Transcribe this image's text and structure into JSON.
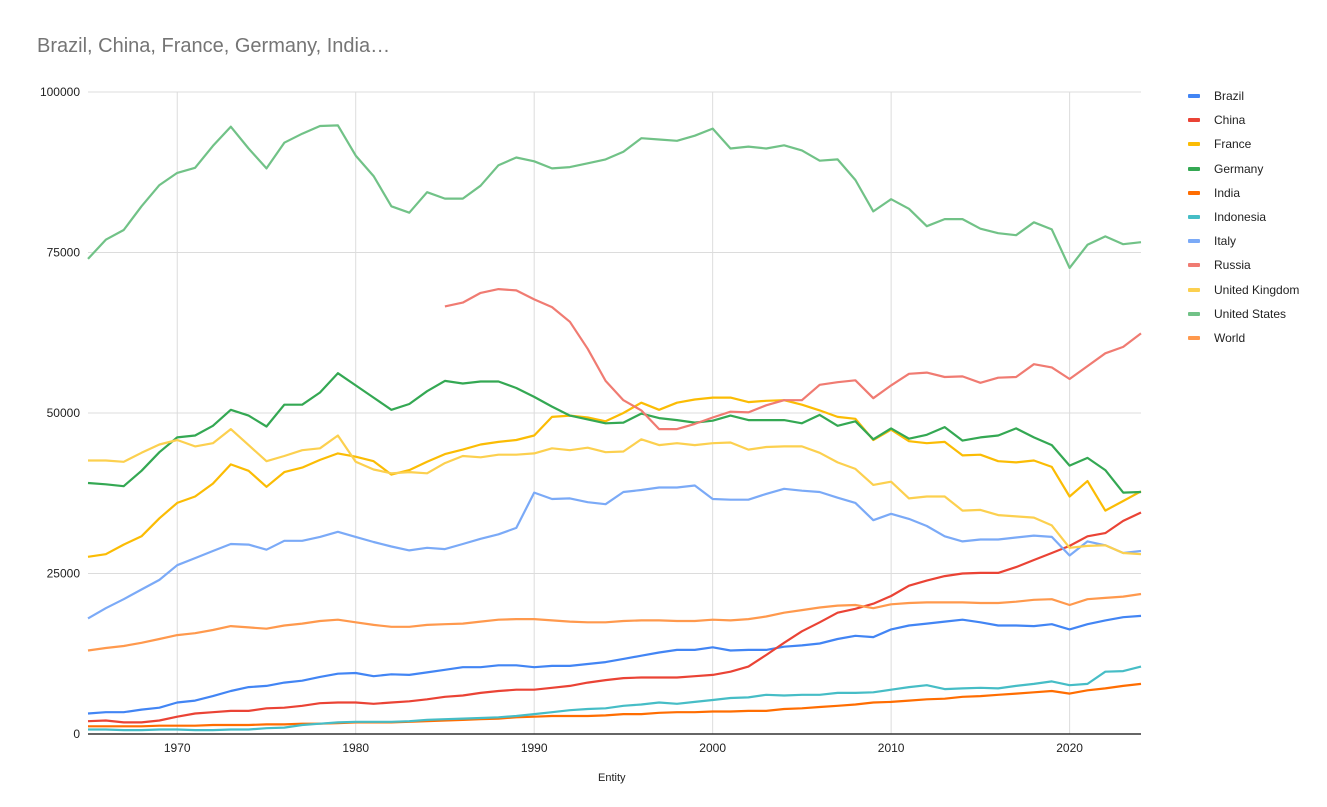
{
  "chart_data": {
    "type": "line",
    "title": "Brazil, China, France, Germany, India…",
    "xlabel": "Entity",
    "ylabel": "",
    "xlim": [
      1965,
      2024
    ],
    "ylim": [
      0,
      100000
    ],
    "x_ticks": [
      "1970",
      "1980",
      "1990",
      "2000",
      "2010",
      "2020"
    ],
    "x_tick_values": [
      1970,
      1980,
      1990,
      2000,
      2010,
      2020
    ],
    "y_ticks": [
      "0",
      "25000",
      "50000",
      "75000",
      "100000"
    ],
    "y_tick_values": [
      0,
      25000,
      50000,
      75000,
      100000
    ],
    "grid": true,
    "legend_position": "right",
    "x": [
      1965,
      1966,
      1967,
      1968,
      1969,
      1970,
      1971,
      1972,
      1973,
      1974,
      1975,
      1976,
      1977,
      1978,
      1979,
      1980,
      1981,
      1982,
      1983,
      1984,
      1985,
      1986,
      1987,
      1988,
      1989,
      1990,
      1991,
      1992,
      1993,
      1994,
      1995,
      1996,
      1997,
      1998,
      1999,
      2000,
      2001,
      2002,
      2003,
      2004,
      2005,
      2006,
      2007,
      2008,
      2009,
      2010,
      2011,
      2012,
      2013,
      2014,
      2015,
      2016,
      2017,
      2018,
      2019,
      2020,
      2021,
      2022,
      2023,
      2024
    ],
    "series": [
      {
        "name": "Brazil",
        "color": "#4285f4",
        "values": [
          3200,
          3400,
          3400,
          3800,
          4100,
          4900,
          5200,
          5900,
          6700,
          7300,
          7500,
          8000,
          8300,
          8900,
          9400,
          9500,
          9000,
          9300,
          9200,
          9600,
          10000,
          10400,
          10400,
          10700,
          10700,
          10400,
          10600,
          10600,
          10900,
          11200,
          11700,
          12200,
          12700,
          13100,
          13100,
          13500,
          13000,
          13100,
          13100,
          13600,
          13800,
          14100,
          14800,
          15300,
          15100,
          16300,
          16900,
          17200,
          17500,
          17800,
          17400,
          16900,
          16900,
          16800,
          17100,
          16300,
          17100,
          17700,
          18200,
          18400
        ]
      },
      {
        "name": "China",
        "color": "#ea4335",
        "values": [
          2000,
          2100,
          1800,
          1800,
          2100,
          2700,
          3200,
          3400,
          3600,
          3600,
          4000,
          4100,
          4400,
          4800,
          4900,
          4900,
          4700,
          4900,
          5100,
          5400,
          5800,
          6000,
          6400,
          6700,
          6900,
          6900,
          7200,
          7500,
          8000,
          8400,
          8700,
          8800,
          8800,
          8800,
          9000,
          9200,
          9700,
          10500,
          12300,
          14200,
          16000,
          17400,
          18900,
          19500,
          20300,
          21500,
          23100,
          23900,
          24600,
          25000,
          25100,
          25100,
          26000,
          27100,
          28200,
          29300,
          30800,
          31300,
          33200,
          34500
        ]
      },
      {
        "name": "France",
        "color": "#fbbc04",
        "values": [
          27600,
          28000,
          29500,
          30800,
          33600,
          36000,
          37000,
          39000,
          42000,
          41000,
          38500,
          40800,
          41500,
          42700,
          43700,
          43200,
          42500,
          40400,
          41100,
          42400,
          43600,
          44300,
          45100,
          45500,
          45800,
          46500,
          49400,
          49600,
          49300,
          48700,
          50000,
          51600,
          50500,
          51600,
          52100,
          52400,
          52400,
          51700,
          51900,
          52000,
          51300,
          50400,
          49400,
          49100,
          45800,
          47400,
          45600,
          45300,
          45500,
          43400,
          43500,
          42500,
          42300,
          42600,
          41600,
          37000,
          39400,
          34800,
          36300,
          37800
        ]
      },
      {
        "name": "Germany",
        "color": "#34a853",
        "values": [
          39100,
          38900,
          38600,
          41000,
          43900,
          46200,
          46500,
          48000,
          50500,
          49600,
          47900,
          51300,
          51300,
          53200,
          56200,
          54300,
          52400,
          50500,
          51400,
          53400,
          55000,
          54600,
          54900,
          54900,
          53900,
          52500,
          51000,
          49600,
          49000,
          48400,
          48500,
          49900,
          49200,
          48900,
          48500,
          48800,
          49600,
          48900,
          48900,
          48900,
          48400,
          49700,
          48000,
          48700,
          45900,
          47600,
          46000,
          46600,
          47800,
          45700,
          46200,
          46500,
          47600,
          46200,
          45000,
          41800,
          43000,
          41100,
          37600,
          37700
        ]
      },
      {
        "name": "India",
        "color": "#ff6d01",
        "values": [
          1200,
          1200,
          1200,
          1200,
          1300,
          1300,
          1300,
          1400,
          1400,
          1400,
          1500,
          1500,
          1600,
          1600,
          1700,
          1800,
          1800,
          1800,
          1900,
          2000,
          2100,
          2200,
          2300,
          2400,
          2600,
          2700,
          2800,
          2800,
          2800,
          2900,
          3100,
          3100,
          3300,
          3400,
          3400,
          3500,
          3500,
          3600,
          3600,
          3900,
          4000,
          4200,
          4400,
          4600,
          4900,
          5000,
          5200,
          5400,
          5500,
          5800,
          5900,
          6100,
          6300,
          6500,
          6700,
          6300,
          6800,
          7100,
          7500,
          7800
        ]
      },
      {
        "name": "Indonesia",
        "color": "#46bdc6",
        "values": [
          700,
          700,
          600,
          600,
          700,
          700,
          600,
          600,
          700,
          700,
          900,
          1000,
          1400,
          1600,
          1800,
          1900,
          1900,
          1900,
          2000,
          2200,
          2300,
          2400,
          2500,
          2600,
          2800,
          3100,
          3400,
          3700,
          3900,
          4000,
          4400,
          4600,
          4900,
          4700,
          5000,
          5300,
          5600,
          5700,
          6100,
          6000,
          6100,
          6100,
          6400,
          6400,
          6500,
          6900,
          7300,
          7600,
          7000,
          7100,
          7200,
          7100,
          7500,
          7800,
          8200,
          7600,
          7800,
          9700,
          9800,
          10500
        ]
      },
      {
        "name": "Italy",
        "color": "#7baaf7",
        "values": [
          18000,
          19600,
          21000,
          22500,
          24000,
          26300,
          27400,
          28500,
          29600,
          29500,
          28700,
          30100,
          30100,
          30700,
          31500,
          30700,
          29900,
          29200,
          28600,
          29000,
          28800,
          29600,
          30400,
          31100,
          32100,
          37600,
          36600,
          36700,
          36100,
          35800,
          37700,
          38000,
          38400,
          38400,
          38700,
          36600,
          36500,
          36500,
          37400,
          38200,
          37900,
          37700,
          36800,
          36000,
          33300,
          34300,
          33500,
          32400,
          30800,
          30000,
          30300,
          30300,
          30600,
          30900,
          30700,
          27800,
          30000,
          29400,
          28200,
          28500
        ]
      },
      {
        "name": "Russia",
        "color": "#f07b72",
        "values": [
          null,
          null,
          null,
          null,
          null,
          null,
          null,
          null,
          null,
          null,
          null,
          null,
          null,
          null,
          null,
          null,
          null,
          null,
          null,
          null,
          66600,
          67200,
          68700,
          69300,
          69100,
          67700,
          66500,
          64200,
          60000,
          55000,
          52000,
          50400,
          47500,
          47500,
          48300,
          49300,
          50200,
          50100,
          51200,
          52000,
          52000,
          54400,
          54800,
          55100,
          52300,
          54300,
          56100,
          56300,
          55600,
          55700,
          54700,
          55500,
          55600,
          57600,
          57100,
          55300,
          57300,
          59300,
          60300,
          62400
        ]
      },
      {
        "name": "United Kingdom",
        "color": "#fcd04f",
        "values": [
          42600,
          42600,
          42400,
          43800,
          45100,
          45800,
          44800,
          45300,
          47500,
          45000,
          42500,
          43300,
          44200,
          44500,
          46500,
          42400,
          41200,
          40600,
          40800,
          40600,
          42200,
          43300,
          43100,
          43500,
          43500,
          43700,
          44500,
          44200,
          44600,
          43900,
          44000,
          45900,
          45000,
          45300,
          45000,
          45300,
          45400,
          44300,
          44700,
          44800,
          44800,
          43800,
          42300,
          41300,
          38800,
          39300,
          36700,
          37000,
          37000,
          34800,
          34900,
          34100,
          33900,
          33700,
          32500,
          29000,
          29300,
          29400,
          28200,
          28000
        ]
      },
      {
        "name": "United States",
        "color": "#71c287",
        "values": [
          74000,
          77000,
          78500,
          82200,
          85500,
          87400,
          88200,
          91600,
          94600,
          91200,
          88100,
          92100,
          93500,
          94700,
          94800,
          90100,
          86900,
          82200,
          81200,
          84400,
          83400,
          83400,
          85400,
          88600,
          89800,
          89200,
          88100,
          88300,
          88900,
          89500,
          90700,
          92800,
          92600,
          92400,
          93200,
          94300,
          91200,
          91500,
          91200,
          91700,
          90900,
          89300,
          89500,
          86300,
          81400,
          83300,
          81800,
          79100,
          80200,
          80200,
          78700,
          78000,
          77700,
          79700,
          78600,
          72600,
          76200,
          77500,
          76300,
          76600
        ]
      },
      {
        "name": "World",
        "color": "#ff994d",
        "values": [
          13000,
          13400,
          13700,
          14200,
          14800,
          15400,
          15700,
          16200,
          16800,
          16600,
          16400,
          16900,
          17200,
          17600,
          17800,
          17400,
          17000,
          16700,
          16700,
          17000,
          17100,
          17200,
          17500,
          17800,
          17900,
          17900,
          17700,
          17500,
          17400,
          17400,
          17600,
          17700,
          17700,
          17600,
          17600,
          17800,
          17700,
          17900,
          18300,
          18900,
          19300,
          19700,
          20000,
          20100,
          19600,
          20200,
          20400,
          20500,
          20500,
          20500,
          20400,
          20400,
          20600,
          20900,
          21000,
          20100,
          21000,
          21200,
          21400,
          21800
        ]
      }
    ]
  }
}
